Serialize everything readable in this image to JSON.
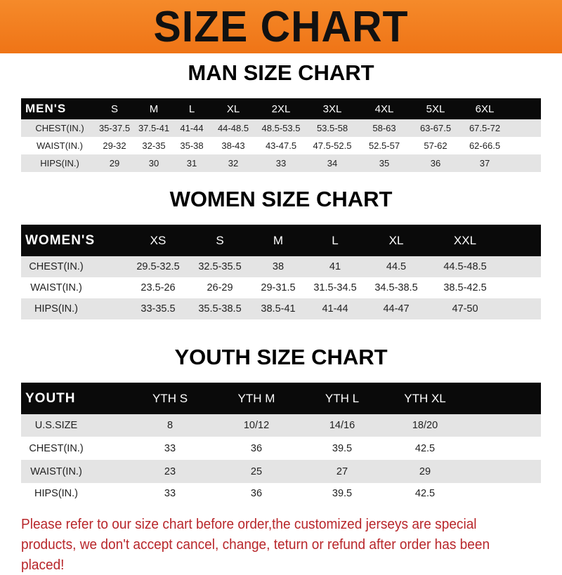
{
  "banner_title": "SIZE CHART",
  "men": {
    "title": "MAN SIZE CHART",
    "header": [
      "MEN'S",
      "S",
      "M",
      "L",
      "XL",
      "2XL",
      "3XL",
      "4XL",
      "5XL",
      "6XL"
    ],
    "rows": [
      [
        "CHEST(IN.)",
        "35-37.5",
        "37.5-41",
        "41-44",
        "44-48.5",
        "48.5-53.5",
        "53.5-58",
        "58-63",
        "63-67.5",
        "67.5-72"
      ],
      [
        "WAIST(IN.)",
        "29-32",
        "32-35",
        "35-38",
        "38-43",
        "43-47.5",
        "47.5-52.5",
        "52.5-57",
        "57-62",
        "62-66.5"
      ],
      [
        "HIPS(IN.)",
        "29",
        "30",
        "31",
        "32",
        "33",
        "34",
        "35",
        "36",
        "37"
      ]
    ]
  },
  "women": {
    "title": "WOMEN SIZE CHART",
    "header": [
      "WOMEN'S",
      "XS",
      "S",
      "M",
      "L",
      "XL",
      "XXL"
    ],
    "rows": [
      [
        "CHEST(IN.)",
        "29.5-32.5",
        "32.5-35.5",
        "38",
        "41",
        "44.5",
        "44.5-48.5"
      ],
      [
        "WAIST(IN.)",
        "23.5-26",
        "26-29",
        "29-31.5",
        "31.5-34.5",
        "34.5-38.5",
        "38.5-42.5"
      ],
      [
        "HIPS(IN.)",
        "33-35.5",
        "35.5-38.5",
        "38.5-41",
        "41-44",
        "44-47",
        "47-50"
      ]
    ]
  },
  "youth": {
    "title": "YOUTH SIZE CHART",
    "header": [
      "YOUTH",
      "YTH S",
      "YTH M",
      "YTH L",
      "YTH XL"
    ],
    "rows": [
      [
        "U.S.SIZE",
        "8",
        "10/12",
        "14/16",
        "18/20"
      ],
      [
        "CHEST(IN.)",
        "33",
        "36",
        "39.5",
        "42.5"
      ],
      [
        "WAIST(IN.)",
        "23",
        "25",
        "27",
        "29"
      ],
      [
        "HIPS(IN.)",
        "33",
        "36",
        "39.5",
        "42.5"
      ]
    ]
  },
  "note": "Please refer to our size chart before order,the customized jerseys are special products, we don't accept cancel, change, teturn or refund after order has been placed!",
  "colors": {
    "banner": "#f07a1c",
    "header_row": "#0a0a0a",
    "stripe": "#e4e4e4",
    "note": "#b8262a"
  }
}
